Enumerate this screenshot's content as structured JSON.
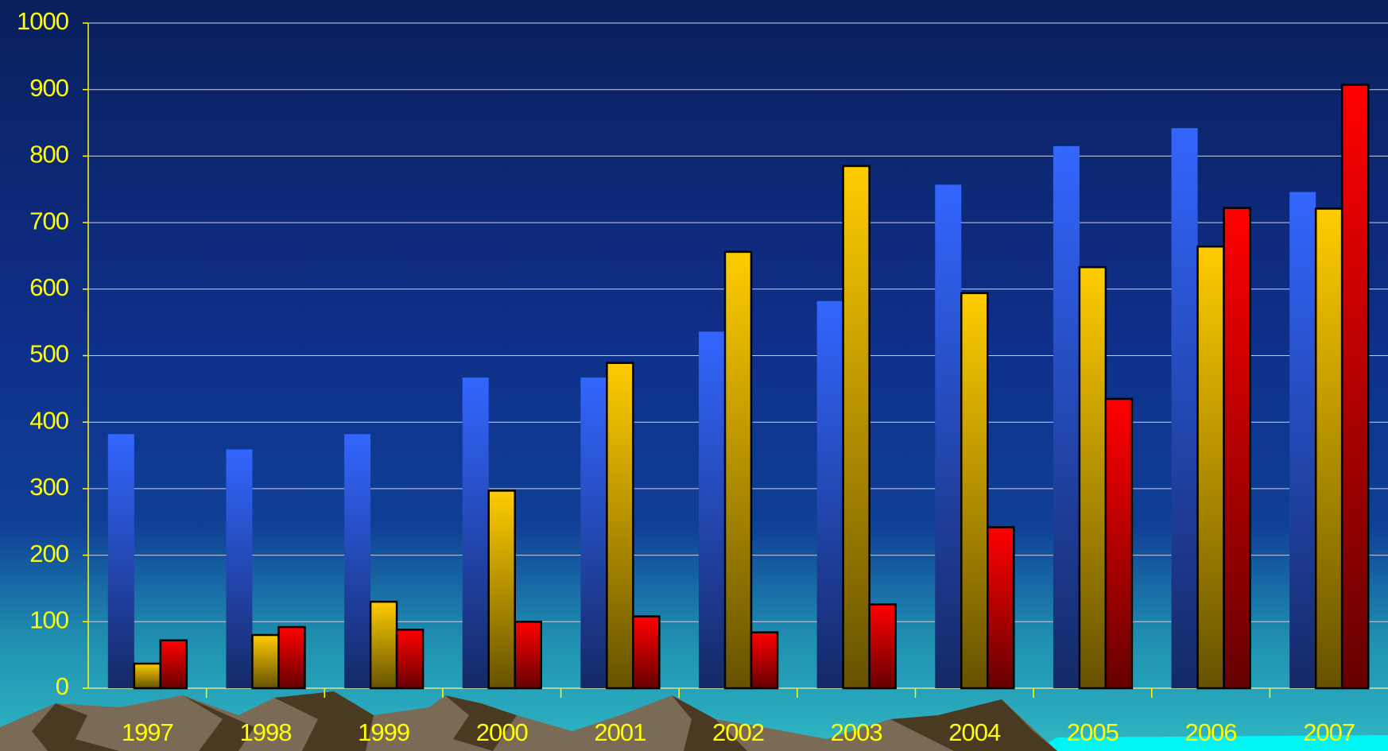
{
  "chart_data": {
    "type": "bar",
    "categories": [
      "1997",
      "1998",
      "1999",
      "2000",
      "2001",
      "2002",
      "2003",
      "2004",
      "2005",
      "2006",
      "2007"
    ],
    "series": [
      {
        "color": "#3366ff",
        "values": [
          382,
          359,
          382,
          467,
          467,
          536,
          582,
          757,
          815,
          842,
          746
        ]
      },
      {
        "color": "#ffcc00",
        "values": [
          37,
          80,
          130,
          297,
          489,
          656,
          785,
          594,
          633,
          664,
          721
        ]
      },
      {
        "color": "#ff0000",
        "values": [
          72,
          92,
          88,
          100,
          108,
          84,
          126,
          242,
          435,
          722,
          907
        ]
      }
    ],
    "ylim": [
      0,
      1000
    ],
    "yticks": [
      0,
      100,
      200,
      300,
      400,
      500,
      600,
      700,
      800,
      900,
      1000
    ],
    "grid": true
  }
}
